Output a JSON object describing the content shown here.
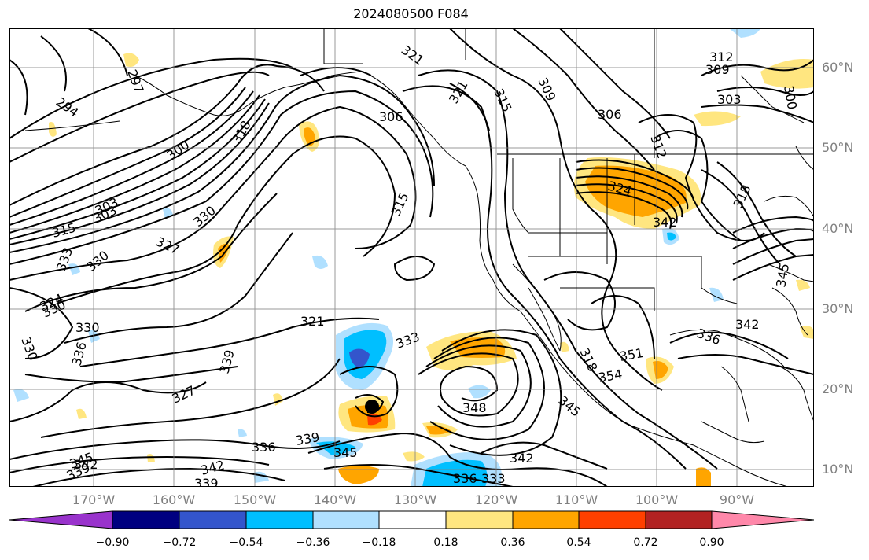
{
  "title": "2024080500 F084",
  "lat_labels": [
    "60°N",
    "50°N",
    "40°N",
    "30°N",
    "20°N",
    "10°N"
  ],
  "lon_labels": [
    "170°W",
    "160°W",
    "150°W",
    "140°W",
    "130°W",
    "120°W",
    "110°W",
    "100°W",
    "90°W"
  ],
  "colorbar": {
    "colors": [
      "#9933cc",
      "#000080",
      "#3355cc",
      "#00bfff",
      "#b0e0ff",
      "#ffffff",
      "#ffe680",
      "#ffa500",
      "#ff4000",
      "#b22222",
      "#ff88aa"
    ],
    "ticks": [
      "−0.90",
      "−0.72",
      "−0.54",
      "−0.36",
      "−0.18",
      "0.18",
      "0.36",
      "0.54",
      "0.72",
      "0.90"
    ]
  },
  "contour_labels": [
    "321",
    "312",
    "309",
    "300",
    "297",
    "294",
    "300",
    "318",
    "321",
    "315",
    "309",
    "306",
    "303",
    "312",
    "318",
    "324",
    "342",
    "303",
    "303",
    "315",
    "330",
    "327",
    "330",
    "333",
    "330",
    "324",
    "330",
    "330",
    "336",
    "327",
    "321",
    "333",
    "339",
    "351",
    "354",
    "348",
    "345",
    "336",
    "342",
    "336",
    "339",
    "345",
    "342",
    "339",
    "336",
    "333",
    "342",
    "345",
    "339",
    "342",
    "318",
    "315",
    "306",
    "345"
  ],
  "tc_marker": "tropical-cyclone-center"
}
